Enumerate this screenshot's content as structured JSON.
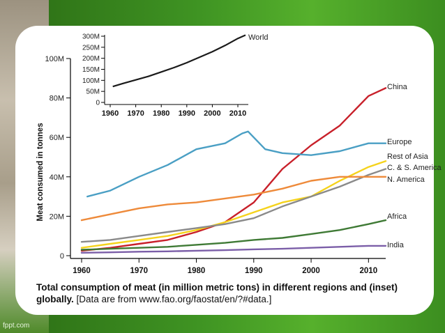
{
  "watermark": "fppt.com",
  "caption": {
    "bold": "Total consumption of meat (in million metric tons) in different regions and (inset) globally.",
    "normal": "[Data are from www.fao.org/faostat/en/?#data.]"
  },
  "colors": {
    "world": "#1a1a1a",
    "china": "#c8202a",
    "europe": "#4a9fc4",
    "rest_of_asia": "#f5d31c",
    "cs_america": "#8a8a8a",
    "n_america": "#ee8a3a",
    "africa": "#3f7a35",
    "india": "#7b5ea8"
  },
  "chart_data": [
    {
      "type": "line",
      "title": "",
      "ylabel": "Meat consumed in tonnes",
      "xlim": [
        1960,
        2013
      ],
      "ylim": [
        0,
        100
      ],
      "x_ticks": [
        1960,
        1970,
        1980,
        1990,
        2000,
        2010
      ],
      "y_ticks": [
        0,
        20,
        40,
        60,
        80,
        100
      ],
      "y_tick_labels": [
        "0",
        "20M",
        "40M",
        "60M",
        "80M",
        "100M"
      ],
      "series": [
        {
          "name": "China",
          "x": [
            1960,
            1965,
            1970,
            1975,
            1980,
            1985,
            1990,
            1995,
            2000,
            2005,
            2010,
            2013
          ],
          "y": [
            2.5,
            4,
            6,
            8,
            12,
            17,
            27,
            44,
            56,
            66,
            81,
            85
          ]
        },
        {
          "name": "Europe",
          "x": [
            1961,
            1965,
            1970,
            1975,
            1980,
            1985,
            1988,
            1989,
            1990,
            1992,
            1995,
            2000,
            2005,
            2010,
            2013
          ],
          "y": [
            30,
            33,
            40,
            46,
            54,
            57,
            62,
            63,
            60,
            54,
            52,
            51,
            53,
            57,
            57
          ]
        },
        {
          "name": "Rest of Asia",
          "x": [
            1960,
            1965,
            1970,
            1975,
            1980,
            1985,
            1990,
            1995,
            2000,
            2005,
            2010,
            2013
          ],
          "y": [
            4,
            6,
            8,
            10,
            13,
            17,
            22,
            27,
            30,
            38,
            45,
            48
          ]
        },
        {
          "name": "C. & S. America",
          "x": [
            1960,
            1965,
            1970,
            1975,
            1980,
            1985,
            1990,
            1995,
            2000,
            2005,
            2010,
            2013
          ],
          "y": [
            7,
            8,
            10,
            12,
            14,
            16,
            19,
            25,
            30,
            35,
            41,
            44
          ]
        },
        {
          "name": "N. America",
          "x": [
            1960,
            1965,
            1970,
            1975,
            1980,
            1985,
            1990,
            1995,
            2000,
            2005,
            2010,
            2013
          ],
          "y": [
            18,
            21,
            24,
            26,
            27,
            29,
            31,
            34,
            38,
            40,
            40,
            40
          ]
        },
        {
          "name": "Africa",
          "x": [
            1960,
            1965,
            1970,
            1975,
            1980,
            1985,
            1990,
            1995,
            2000,
            2005,
            2010,
            2013
          ],
          "y": [
            3,
            3.5,
            4,
            4.5,
            5.5,
            6.5,
            8,
            9,
            11,
            13,
            16,
            18
          ]
        },
        {
          "name": "India",
          "x": [
            1960,
            1965,
            1970,
            1975,
            1980,
            1985,
            1990,
            1995,
            2000,
            2005,
            2010,
            2013
          ],
          "y": [
            1.5,
            1.7,
            2,
            2.2,
            2.5,
            2.8,
            3.2,
            3.5,
            4,
            4.5,
            5,
            5
          ]
        }
      ]
    },
    {
      "type": "line",
      "title": "",
      "inset": true,
      "xlim": [
        1960,
        2013
      ],
      "ylim": [
        0,
        300
      ],
      "x_ticks": [
        1960,
        1970,
        1980,
        1990,
        2000,
        2010
      ],
      "y_ticks": [
        0,
        50,
        100,
        150,
        200,
        250,
        300
      ],
      "y_tick_labels": [
        "0",
        "50M",
        "100M",
        "150M",
        "200M",
        "250M",
        "300M"
      ],
      "series": [
        {
          "name": "World",
          "x": [
            1961,
            1965,
            1970,
            1975,
            1980,
            1985,
            1990,
            1995,
            2000,
            2005,
            2010,
            2013
          ],
          "y": [
            72,
            86,
            102,
            118,
            138,
            158,
            180,
            205,
            230,
            258,
            290,
            305
          ]
        }
      ]
    }
  ]
}
